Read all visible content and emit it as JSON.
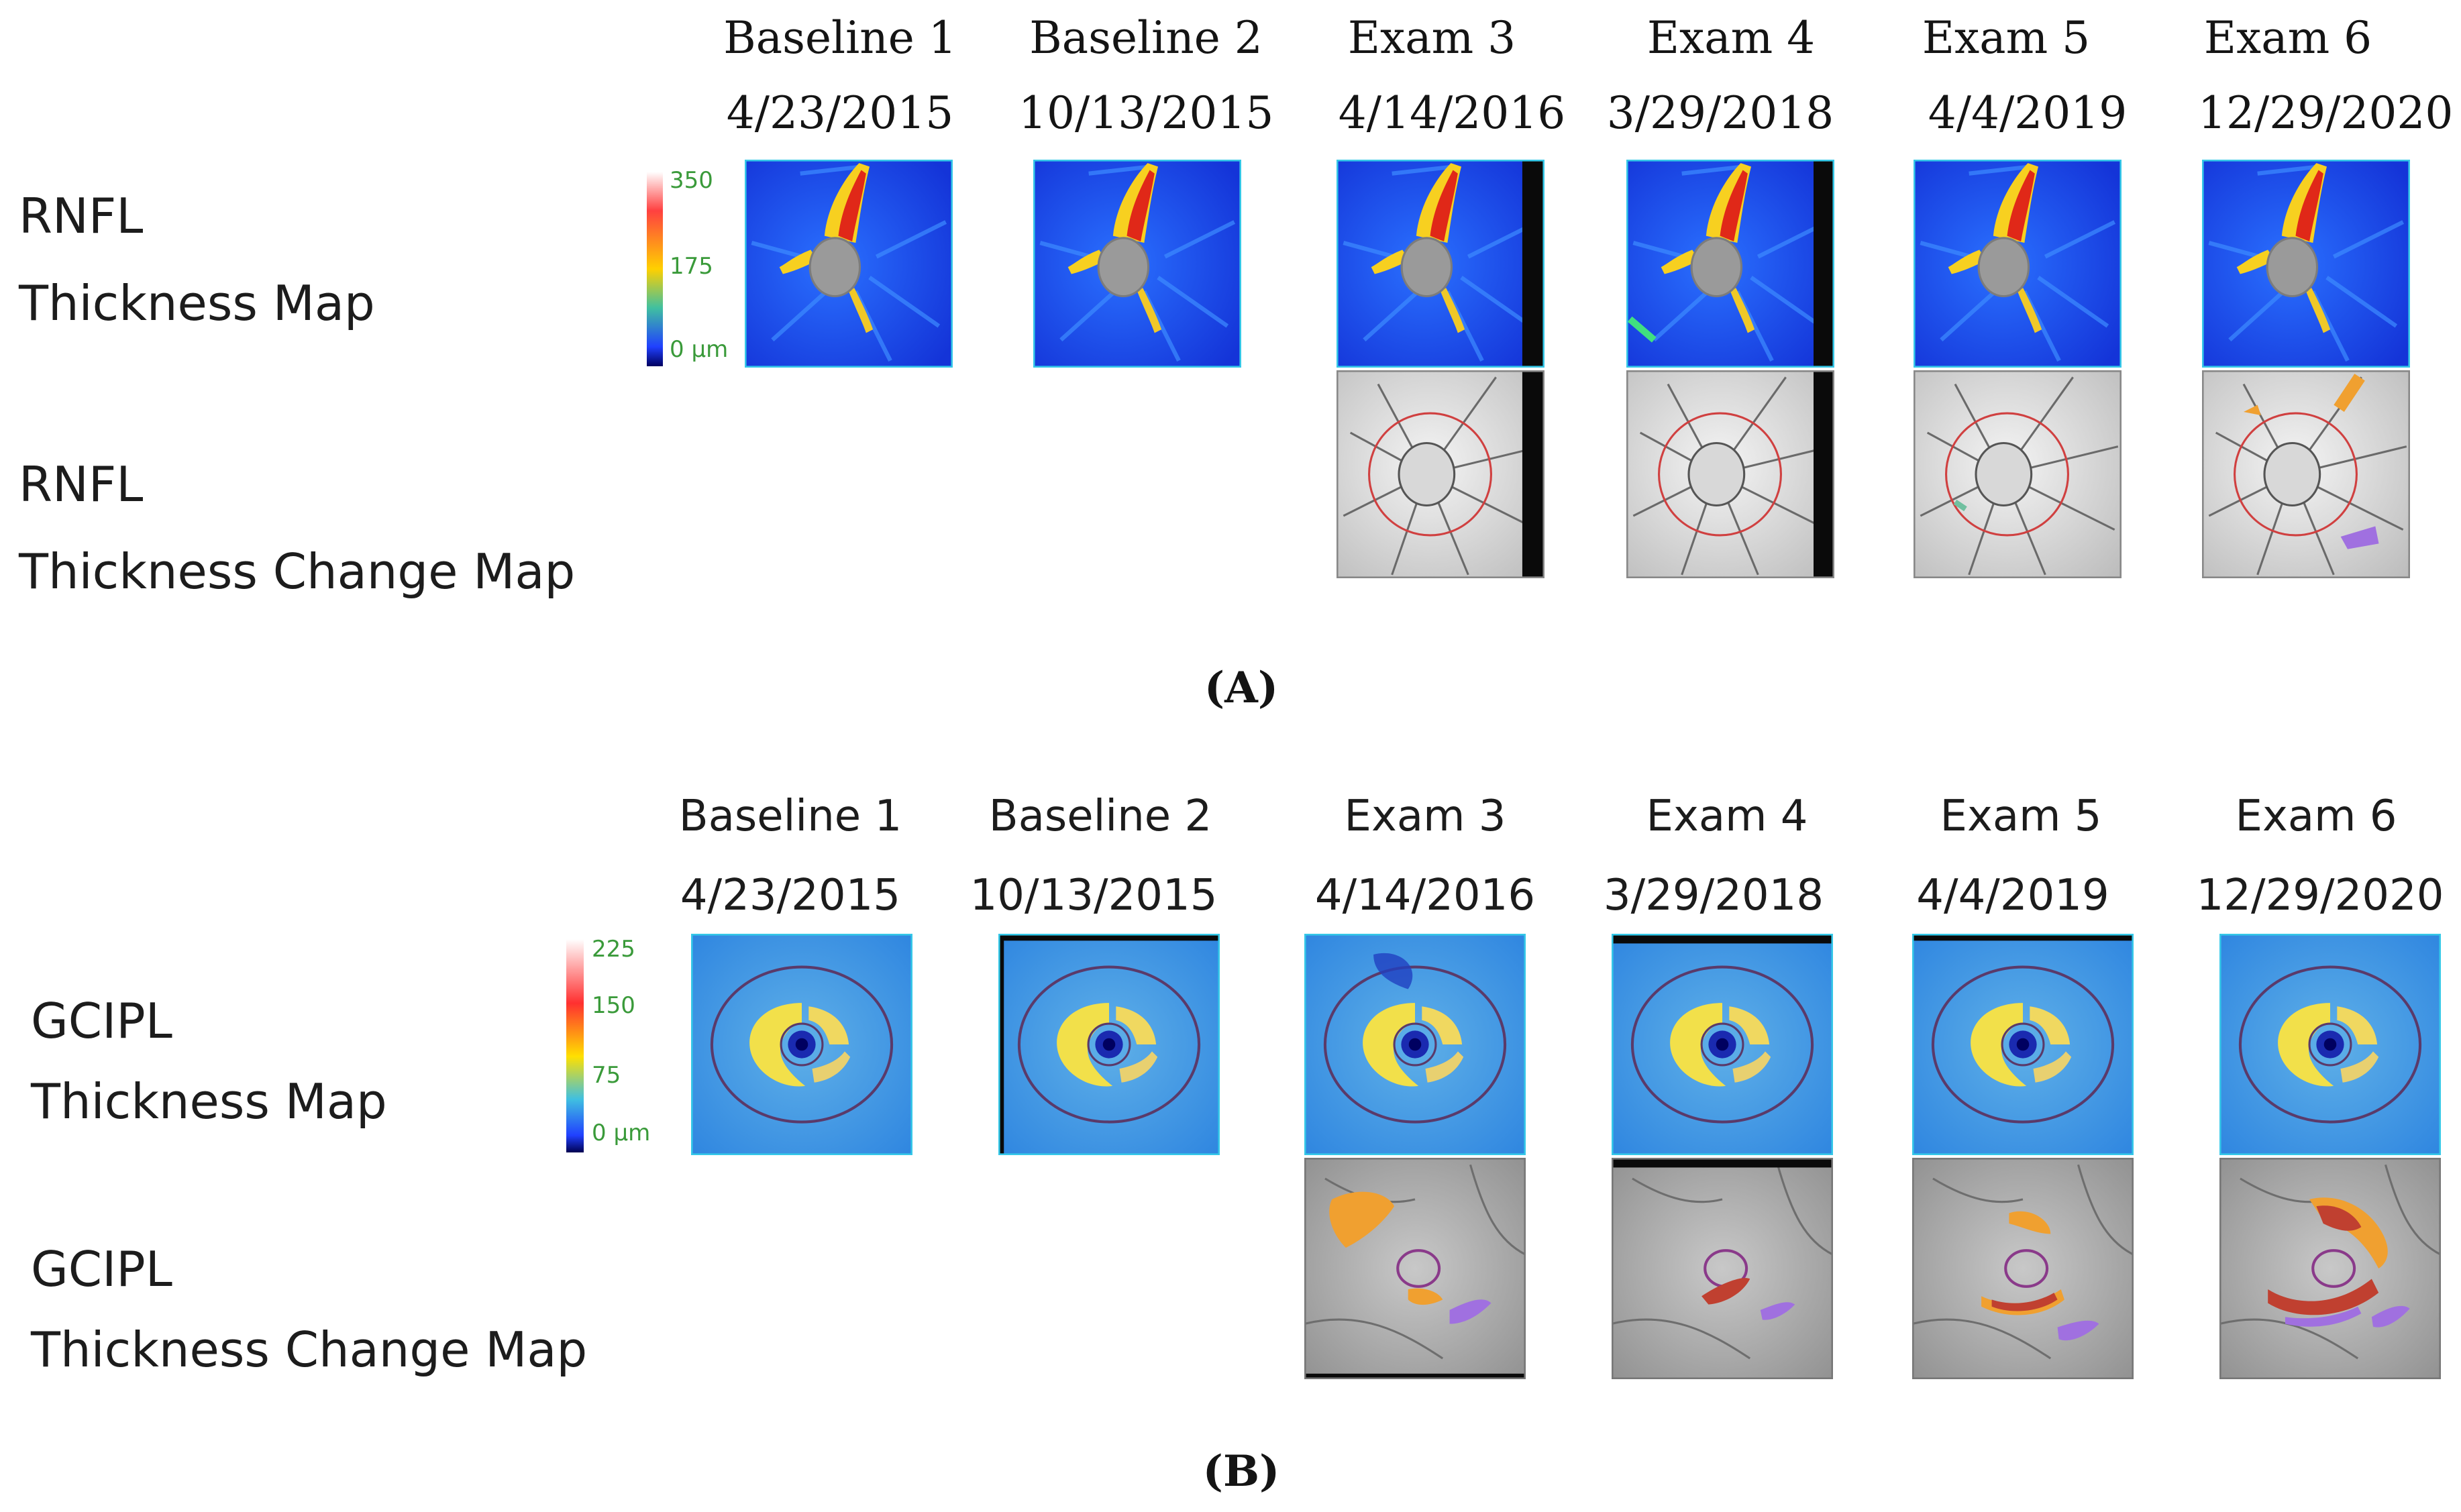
{
  "panelA": {
    "label": "(A)",
    "columns": [
      {
        "name": "Baseline 1",
        "date": "4/23/2015"
      },
      {
        "name": "Baseline 2",
        "date": "10/13/2015"
      },
      {
        "name": "Exam 3",
        "date": "4/14/2016"
      },
      {
        "name": "Exam 4",
        "date": "3/29/2018"
      },
      {
        "name": "Exam 5",
        "date": "4/4/2019"
      },
      {
        "name": "Exam 6",
        "date": "12/29/2020"
      }
    ],
    "rows": {
      "thickness_map": {
        "line1": "RNFL",
        "line2": "Thickness Map"
      },
      "change_map": {
        "line1": "RNFL",
        "line2": "Thickness Change Map"
      }
    },
    "scale": {
      "top": "350",
      "mid": "175",
      "bottom": "0 µm"
    }
  },
  "panelB": {
    "label": "(B)",
    "columns": [
      {
        "name": "Baseline 1",
        "date": "4/23/2015"
      },
      {
        "name": "Baseline 2",
        "date": "10/13/2015"
      },
      {
        "name": "Exam 3",
        "date": "4/14/2016"
      },
      {
        "name": "Exam 4",
        "date": "3/29/2018"
      },
      {
        "name": "Exam 5",
        "date": "4/4/2019"
      },
      {
        "name": "Exam 6",
        "date": "12/29/2020"
      }
    ],
    "rows": {
      "thickness_map": {
        "line1": "GCIPL",
        "line2": "Thickness Map"
      },
      "change_map": {
        "line1": "GCIPL",
        "line2": "Thickness Change Map"
      }
    },
    "scale": {
      "top": "225",
      "upper": "150",
      "mid": "75",
      "bottom": "0 µm"
    }
  },
  "colors": {
    "tile_border": "#35c8e8",
    "map_blue": "#1f4fe0",
    "thin_red": "#d83020",
    "thin_orange": "#f0a030",
    "thin_purple": "#a070e0",
    "ring_red": "#d04040",
    "gcipl_yellow": "#f2e04a"
  }
}
